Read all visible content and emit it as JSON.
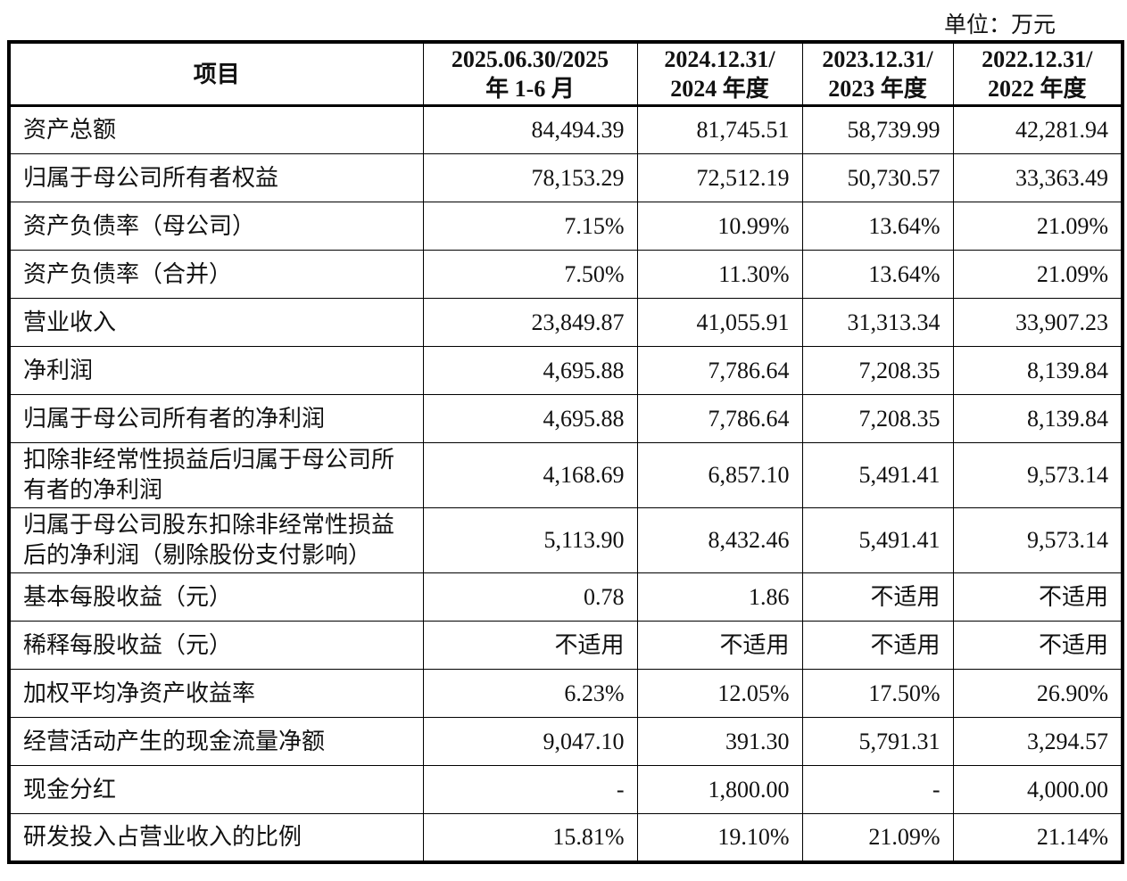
{
  "unit": "单位：万元",
  "headers": [
    "项目",
    "2025.06.30/2025\n年 1-6 月",
    "2024.12.31/\n2024 年度",
    "2023.12.31/\n2023 年度",
    "2022.12.31/\n2022 年度"
  ],
  "header_lines": [
    [
      "项目"
    ],
    [
      "2025.06.30/2025",
      "年 1-6 月"
    ],
    [
      "2024.12.31/",
      "2024 年度"
    ],
    [
      "2023.12.31/",
      "2023 年度"
    ],
    [
      "2022.12.31/",
      "2022 年度"
    ]
  ],
  "rows": [
    {
      "label": "资产总额",
      "values": [
        "84,494.39",
        "81,745.51",
        "58,739.99",
        "42,281.94"
      ]
    },
    {
      "label": "归属于母公司所有者权益",
      "values": [
        "78,153.29",
        "72,512.19",
        "50,730.57",
        "33,363.49"
      ]
    },
    {
      "label": "资产负债率（母公司）",
      "values": [
        "7.15%",
        "10.99%",
        "13.64%",
        "21.09%"
      ]
    },
    {
      "label": "资产负债率（合并）",
      "values": [
        "7.50%",
        "11.30%",
        "13.64%",
        "21.09%"
      ]
    },
    {
      "label": "营业收入",
      "values": [
        "23,849.87",
        "41,055.91",
        "31,313.34",
        "33,907.23"
      ]
    },
    {
      "label": "净利润",
      "values": [
        "4,695.88",
        "7,786.64",
        "7,208.35",
        "8,139.84"
      ]
    },
    {
      "label": "归属于母公司所有者的净利润",
      "values": [
        "4,695.88",
        "7,786.64",
        "7,208.35",
        "8,139.84"
      ]
    },
    {
      "label": "扣除非经常性损益后归属于母公司所有者的净利润",
      "values": [
        "4,168.69",
        "6,857.10",
        "5,491.41",
        "9,573.14"
      ]
    },
    {
      "label": "归属于母公司股东扣除非经常性损益后的净利润（剔除股份支付影响）",
      "values": [
        "5,113.90",
        "8,432.46",
        "5,491.41",
        "9,573.14"
      ]
    },
    {
      "label": "基本每股收益（元）",
      "values": [
        "0.78",
        "1.86",
        "不适用",
        "不适用"
      ]
    },
    {
      "label": "稀释每股收益（元）",
      "values": [
        "不适用",
        "不适用",
        "不适用",
        "不适用"
      ]
    },
    {
      "label": "加权平均净资产收益率",
      "values": [
        "6.23%",
        "12.05%",
        "17.50%",
        "26.90%"
      ]
    },
    {
      "label": "经营活动产生的现金流量净额",
      "values": [
        "9,047.10",
        "391.30",
        "5,791.31",
        "3,294.57"
      ]
    },
    {
      "label": "现金分红",
      "values": [
        "-",
        "1,800.00",
        "-",
        "4,000.00"
      ]
    },
    {
      "label": "研发投入占营业收入的比例",
      "values": [
        "15.81%",
        "19.10%",
        "21.09%",
        "21.14%"
      ]
    }
  ]
}
